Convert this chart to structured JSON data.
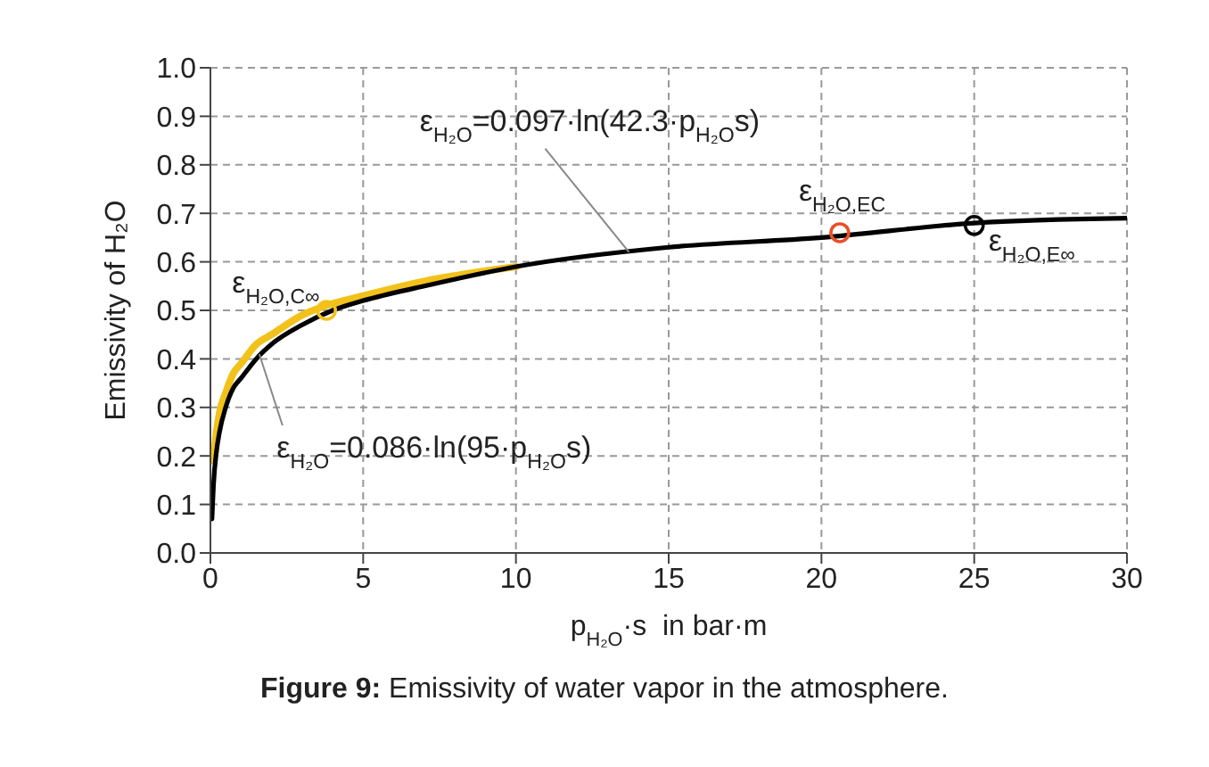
{
  "chart_data": {
    "type": "line",
    "title": "Figure 9: Emissivity of water vapor in the atmosphere.",
    "xlabel": "p$_{H₂O}$·s  in bar·m",
    "ylabel": "Emissivity of H₂O",
    "xlim": [
      0,
      30
    ],
    "xticks": [
      0,
      5,
      10,
      15,
      20,
      25,
      30
    ],
    "ylim": [
      0,
      1
    ],
    "yticks": [
      {
        "value": 0,
        "label": "0.0"
      },
      0.1,
      0.2,
      0.3,
      0.4,
      0.5,
      0.6,
      0.7,
      0.8,
      0.9,
      {
        "value": 1,
        "label": "1.0"
      }
    ],
    "grid": true,
    "line_style": "solid",
    "series": [
      {
        "color": "#f2c21b",
        "marker": "none",
        "x": [
          0.1,
          0.2,
          0.3,
          0.5,
          0.75,
          1,
          1.5,
          2,
          3,
          3.8,
          5,
          7,
          10
        ],
        "values": [
          0.19,
          0.25,
          0.29,
          0.33,
          0.37,
          0.39,
          0.43,
          0.45,
          0.49,
          0.51,
          0.53,
          0.56,
          0.59
        ]
      },
      {
        "color": "#000000",
        "marker": "none",
        "x": [
          0.05,
          0.1,
          0.2,
          0.3,
          0.5,
          0.75,
          1,
          1.5,
          2,
          3,
          4,
          5,
          7,
          10,
          15,
          20,
          25,
          30
        ],
        "values": [
          0.07,
          0.14,
          0.21,
          0.25,
          0.3,
          0.34,
          0.36,
          0.4,
          0.43,
          0.47,
          0.5,
          0.52,
          0.55,
          0.59,
          0.63,
          0.65,
          0.68,
          0.69
        ]
      },
      {
        "type": "scatter",
        "name": "ε$_{H₂O,C∞}$",
        "color": "#f2c21b",
        "marker": "circle",
        "x": [
          3.8
        ],
        "values": [
          0.5
        ]
      },
      {
        "type": "scatter",
        "name": "ε$_{H₂O,EC}$",
        "color": "#e8502a",
        "marker": "circle",
        "x": [
          20.6
        ],
        "values": [
          0.66
        ]
      },
      {
        "type": "scatter",
        "name": "ε$_{H₂O,E∞}$",
        "color": "#000000",
        "marker": "circle",
        "x": [
          25
        ],
        "values": [
          0.675
        ]
      }
    ],
    "annotations": [
      {
        "text": "ε$_{H₂O}$=0.097·ln(42.3·p$_{H₂O}$s)",
        "x": 13.7,
        "y": 0.62
      },
      {
        "text": "ε$_{H₂O}$=0.086·ln(95·p$_{H₂O}$s)",
        "x": 1.6,
        "y": 0.41
      }
    ]
  }
}
